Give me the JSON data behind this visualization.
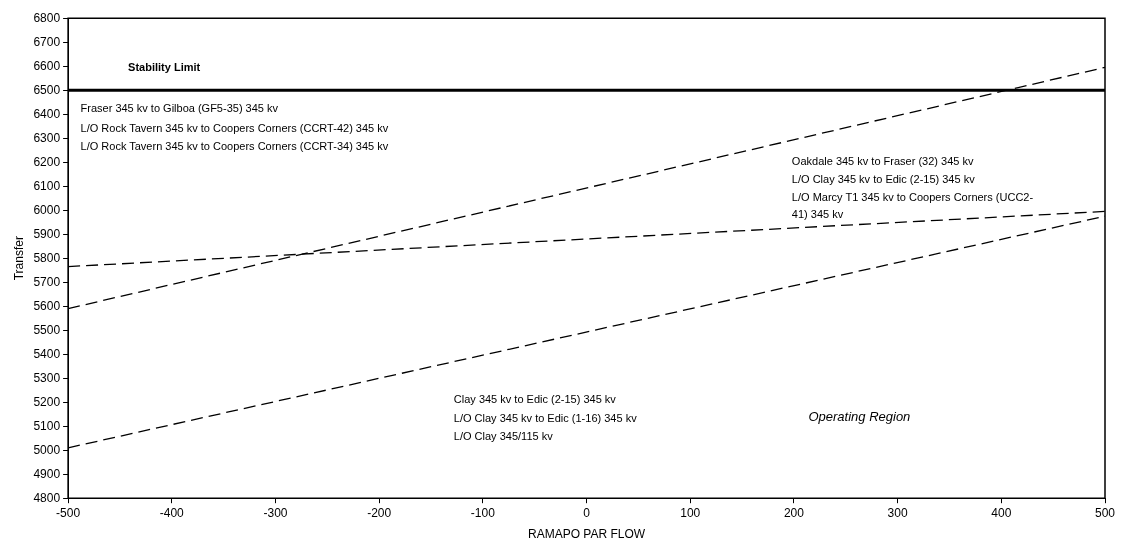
{
  "chart_data": {
    "type": "line",
    "xlabel": "RAMAPO PAR FLOW",
    "ylabel": "Transfer",
    "x": [
      -500,
      500
    ],
    "series": [
      {
        "color": "#000000",
        "values": [
          5590,
          6595
        ],
        "line_style": "dashed"
      },
      {
        "color": "#000000",
        "values": [
          5765,
          5995
        ],
        "line_style": "dashed"
      },
      {
        "color": "#000000",
        "values": [
          5010,
          5975
        ],
        "line_style": "dashed"
      }
    ],
    "xlim": [
      -500,
      500
    ],
    "xticks": [
      -500,
      -400,
      -300,
      -200,
      -100,
      0,
      100,
      200,
      300,
      400,
      500
    ],
    "ylim": [
      4800,
      6800
    ],
    "yticks": [
      4800,
      4900,
      5000,
      5100,
      5200,
      5300,
      5400,
      5500,
      5600,
      5700,
      5800,
      5900,
      6000,
      6100,
      6200,
      6300,
      6400,
      6500,
      6600,
      6700,
      6800
    ],
    "ref_lines": [
      {
        "axis": "y",
        "value": 6500,
        "label": "Stability Limit",
        "color": "#000000",
        "line_style": "solid"
      }
    ],
    "annotations": [
      "Fraser 345 kv to Gilboa (GF5-35) 345 kv",
      "L/O Rock Tavern 345 kv to Coopers Corners (CCRT-42) 345 kv",
      "L/O Rock Tavern 345 kv to Coopers Corners (CCRT-34) 345 kv",
      "Oakdale 345 kv to Fraser (32) 345 kv",
      "L/O Clay 345 kv to Edic (2-15) 345 kv",
      "L/O Marcy T1 345 kv to Coopers Corners (UCC2-",
      "41) 345 kv",
      "Clay 345 kv to Edic (2-15) 345 kv",
      "L/O Clay 345 kv to Edic (1-16) 345 kv",
      "L/O Clay 345/115 kv",
      "Operating Region"
    ],
    "grid": false,
    "legend": false,
    "marker": "none"
  }
}
